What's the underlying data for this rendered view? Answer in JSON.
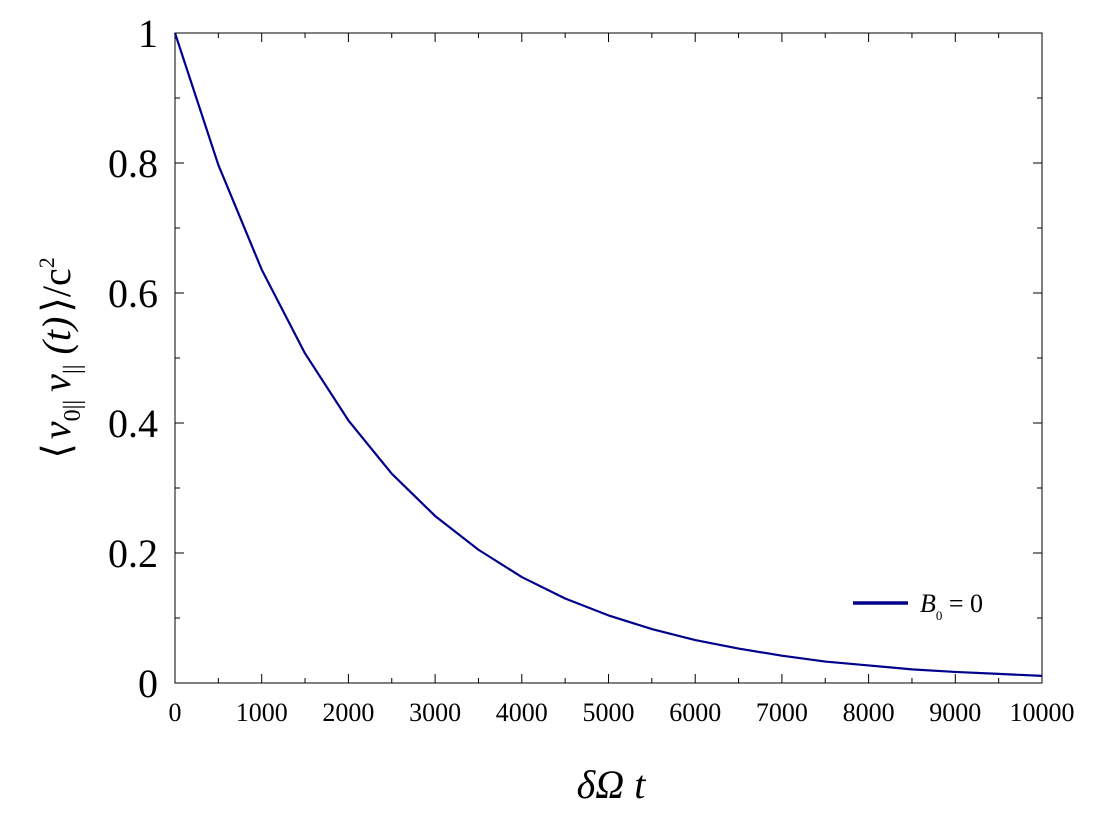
{
  "chart_data": {
    "type": "line",
    "xlabel": "δΩ t",
    "ylabel": {
      "open": "⟨",
      "v1": "v",
      "sub1": "0||",
      "v2": "v",
      "sub2": "||",
      "arg": "(t)",
      "close": "⟩/c",
      "sup": "2"
    },
    "xlim": [
      0,
      10000
    ],
    "ylim": [
      0,
      1
    ],
    "x_ticks": [
      "0",
      "1000",
      "2000",
      "3000",
      "4000",
      "5000",
      "6000",
      "7000",
      "8000",
      "9000",
      "10000"
    ],
    "x_tick_values": [
      0,
      1000,
      2000,
      3000,
      4000,
      5000,
      6000,
      7000,
      8000,
      9000,
      10000
    ],
    "y_ticks": [
      "0",
      "0.2",
      "0.4",
      "0.6",
      "0.8",
      "1"
    ],
    "y_tick_values": [
      0,
      0.2,
      0.4,
      0.6,
      0.8,
      1
    ],
    "grid": false,
    "legend_position": "bottom-right",
    "series": [
      {
        "name": "B0 = 0",
        "color": "#00008b",
        "x": [
          0,
          500,
          1000,
          1500,
          2000,
          2500,
          3000,
          3500,
          4000,
          4500,
          5000,
          5500,
          6000,
          6500,
          7000,
          7500,
          8000,
          8500,
          9000,
          9500,
          10000
        ],
        "values": [
          1.0,
          0.797,
          0.636,
          0.507,
          0.404,
          0.322,
          0.257,
          0.205,
          0.163,
          0.13,
          0.104,
          0.083,
          0.066,
          0.053,
          0.042,
          0.033,
          0.027,
          0.021,
          0.017,
          0.014,
          0.011
        ]
      }
    ],
    "legend": {
      "symbol": "B",
      "sub": "0",
      "rest": " = 0"
    }
  }
}
